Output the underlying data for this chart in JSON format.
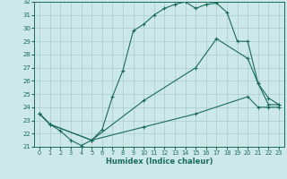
{
  "xlabel": "Humidex (Indice chaleur)",
  "bg_color": "#cce8e8",
  "grid_color": "#aacccc",
  "line_color": "#1a6b5a",
  "xlim": [
    -0.5,
    23.5
  ],
  "ylim": [
    21,
    32
  ],
  "xticks": [
    0,
    1,
    2,
    3,
    4,
    5,
    6,
    7,
    8,
    9,
    10,
    11,
    12,
    13,
    14,
    15,
    16,
    17,
    18,
    19,
    20,
    21,
    22,
    23
  ],
  "yticks": [
    21,
    22,
    23,
    24,
    25,
    26,
    27,
    28,
    29,
    30,
    31,
    32
  ],
  "line1_x": [
    0,
    1,
    2,
    3,
    4,
    5,
    6,
    7,
    8,
    9,
    10,
    11,
    12,
    13,
    14,
    15,
    16,
    17,
    18,
    19,
    20,
    21,
    22,
    23
  ],
  "line1_y": [
    23.5,
    22.7,
    22.2,
    21.5,
    21.1,
    21.5,
    22.3,
    24.8,
    26.8,
    29.8,
    30.3,
    31.0,
    31.5,
    31.8,
    32.0,
    31.5,
    31.8,
    31.9,
    31.2,
    29.0,
    29.0,
    25.8,
    24.2,
    24.2
  ],
  "line2_x": [
    0,
    1,
    5,
    10,
    15,
    17,
    20,
    21,
    22,
    23
  ],
  "line2_y": [
    23.5,
    22.7,
    21.5,
    24.5,
    27.0,
    29.2,
    27.7,
    25.8,
    24.7,
    24.2
  ],
  "line3_x": [
    0,
    1,
    5,
    10,
    15,
    20,
    21,
    22,
    23
  ],
  "line3_y": [
    23.5,
    22.7,
    21.5,
    22.5,
    23.5,
    24.8,
    24.0,
    24.0,
    24.0
  ]
}
